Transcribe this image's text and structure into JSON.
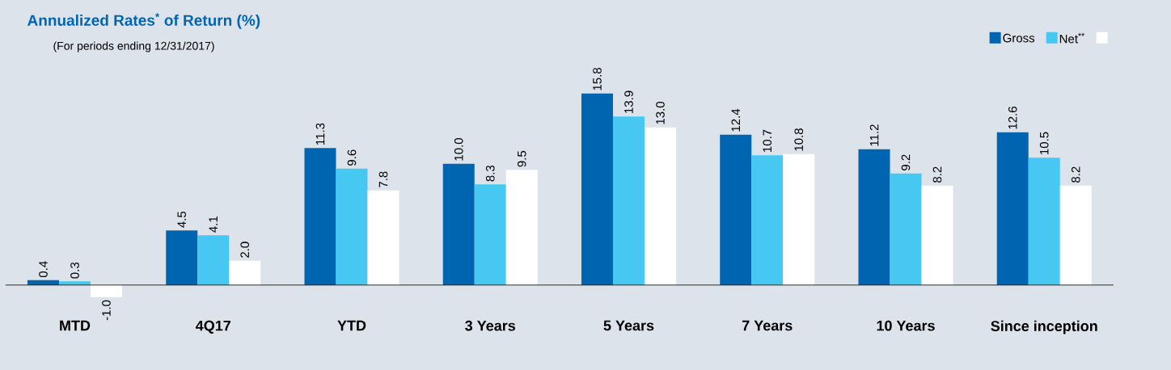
{
  "chart_data": {
    "type": "bar",
    "title": "Annualized Rates$^{*}$ of Return (%)",
    "subtitle": "(For periods ending 12/31/2017)",
    "categories": [
      "MTD",
      "4Q17",
      "YTD",
      "3 Years",
      "5 Years",
      "7 Years",
      "10 Years",
      "Since inception"
    ],
    "series": [
      {
        "name": "Gross",
        "color": "#0065b1",
        "values": [
          0.4,
          4.5,
          11.3,
          10.0,
          15.8,
          12.4,
          11.2,
          12.6
        ],
        "value_labels": [
          "0.4",
          "4.5",
          "11.3",
          "10.0",
          "15.8",
          "12.4",
          "11.2",
          "12.6"
        ]
      },
      {
        "name": "Net$^{**}$",
        "color": "#46c8f3",
        "values": [
          0.3,
          4.1,
          9.6,
          8.3,
          13.9,
          10.7,
          9.2,
          10.5
        ],
        "value_labels": [
          "0.3",
          "4.1",
          "9.6",
          "8.3",
          "13.9",
          "10.7",
          "9.2",
          "10.5"
        ]
      },
      {
        "color": "#ffffff",
        "values": [
          -1.0,
          2.0,
          7.8,
          9.5,
          13.0,
          10.8,
          8.2,
          8.2
        ],
        "value_labels": [
          "-1.0",
          "2.0",
          "7.8",
          "9.5",
          "13.0",
          "10.8",
          "8.2",
          "8.2"
        ]
      }
    ],
    "legend": "top right"
  }
}
